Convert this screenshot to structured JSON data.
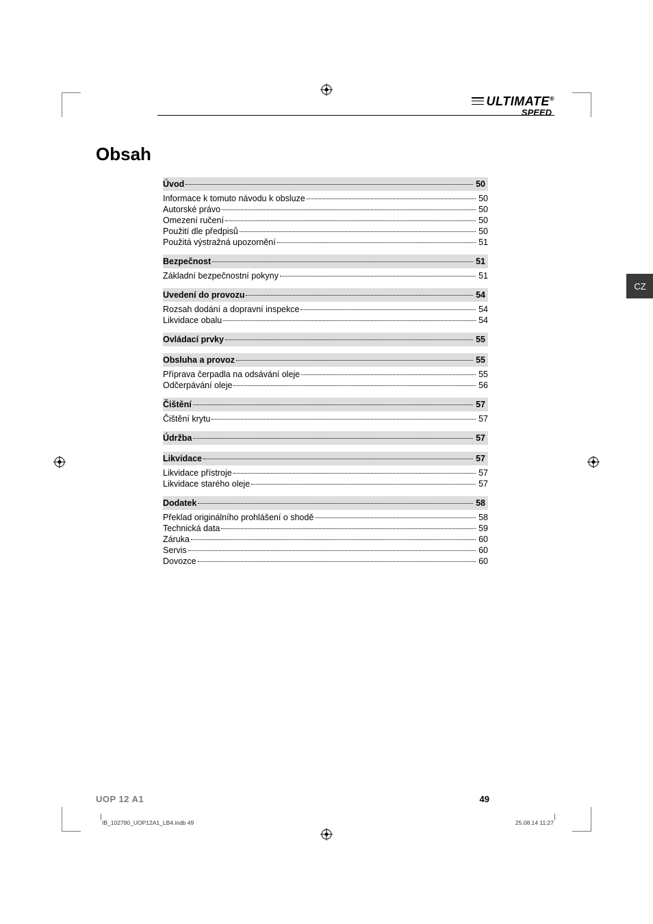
{
  "brand": {
    "main": "ULTIMATE",
    "sub": "SPEED",
    "registered": "®"
  },
  "title": "Obsah",
  "side_tab": "CZ",
  "footer": {
    "model": "UOP 12 A1",
    "page": "49"
  },
  "footline": {
    "left": "IB_102790_UOP12A1_LB4.indb   49",
    "right": "25.08.14   11:27"
  },
  "toc": [
    {
      "type": "section",
      "label": "Úvod",
      "page": "50"
    },
    {
      "type": "item",
      "label": "Informace k tomuto návodu k obsluze",
      "page": "50"
    },
    {
      "type": "item",
      "label": "Autorské právo",
      "page": "50"
    },
    {
      "type": "item",
      "label": "Omezení ručení",
      "page": "50"
    },
    {
      "type": "item",
      "label": "Použití dle předpisů",
      "page": "50"
    },
    {
      "type": "item",
      "label": "Použitá výstražná upozornění",
      "page": "51"
    },
    {
      "type": "section",
      "label": "Bezpečnost",
      "page": "51"
    },
    {
      "type": "item",
      "label": "Základní bezpečnostní pokyny",
      "page": "51"
    },
    {
      "type": "section",
      "label": "Uvedení do provozu",
      "page": "54"
    },
    {
      "type": "item",
      "label": "Rozsah dodání a dopravní inspekce",
      "page": "54"
    },
    {
      "type": "item",
      "label": "Likvidace obalu",
      "page": "54"
    },
    {
      "type": "section",
      "label": "Ovládací prvky",
      "page": "55"
    },
    {
      "type": "section",
      "label": "Obsluha a provoz",
      "page": "55"
    },
    {
      "type": "item",
      "label": "Příprava čerpadla na odsávání oleje",
      "page": "55"
    },
    {
      "type": "item",
      "label": "Odčerpávání oleje",
      "page": "56"
    },
    {
      "type": "section",
      "label": "Čištění",
      "page": "57"
    },
    {
      "type": "item",
      "label": "Čištění krytu",
      "page": "57"
    },
    {
      "type": "section",
      "label": "Údržba",
      "page": "57"
    },
    {
      "type": "section",
      "label": "Likvidace",
      "page": "57"
    },
    {
      "type": "item",
      "label": "Likvidace přístroje",
      "page": "57"
    },
    {
      "type": "item",
      "label": "Likvidace starého oleje",
      "page": "57"
    },
    {
      "type": "section",
      "label": "Dodatek",
      "page": "58"
    },
    {
      "type": "item",
      "label": "Překlad originálního prohlášení o shodě",
      "page": "58"
    },
    {
      "type": "item",
      "label": "Technická data",
      "page": "59"
    },
    {
      "type": "item",
      "label": "Záruka",
      "page": "60"
    },
    {
      "type": "item",
      "label": "Servis",
      "page": "60"
    },
    {
      "type": "item",
      "label": "Dovozce",
      "page": "60"
    }
  ]
}
